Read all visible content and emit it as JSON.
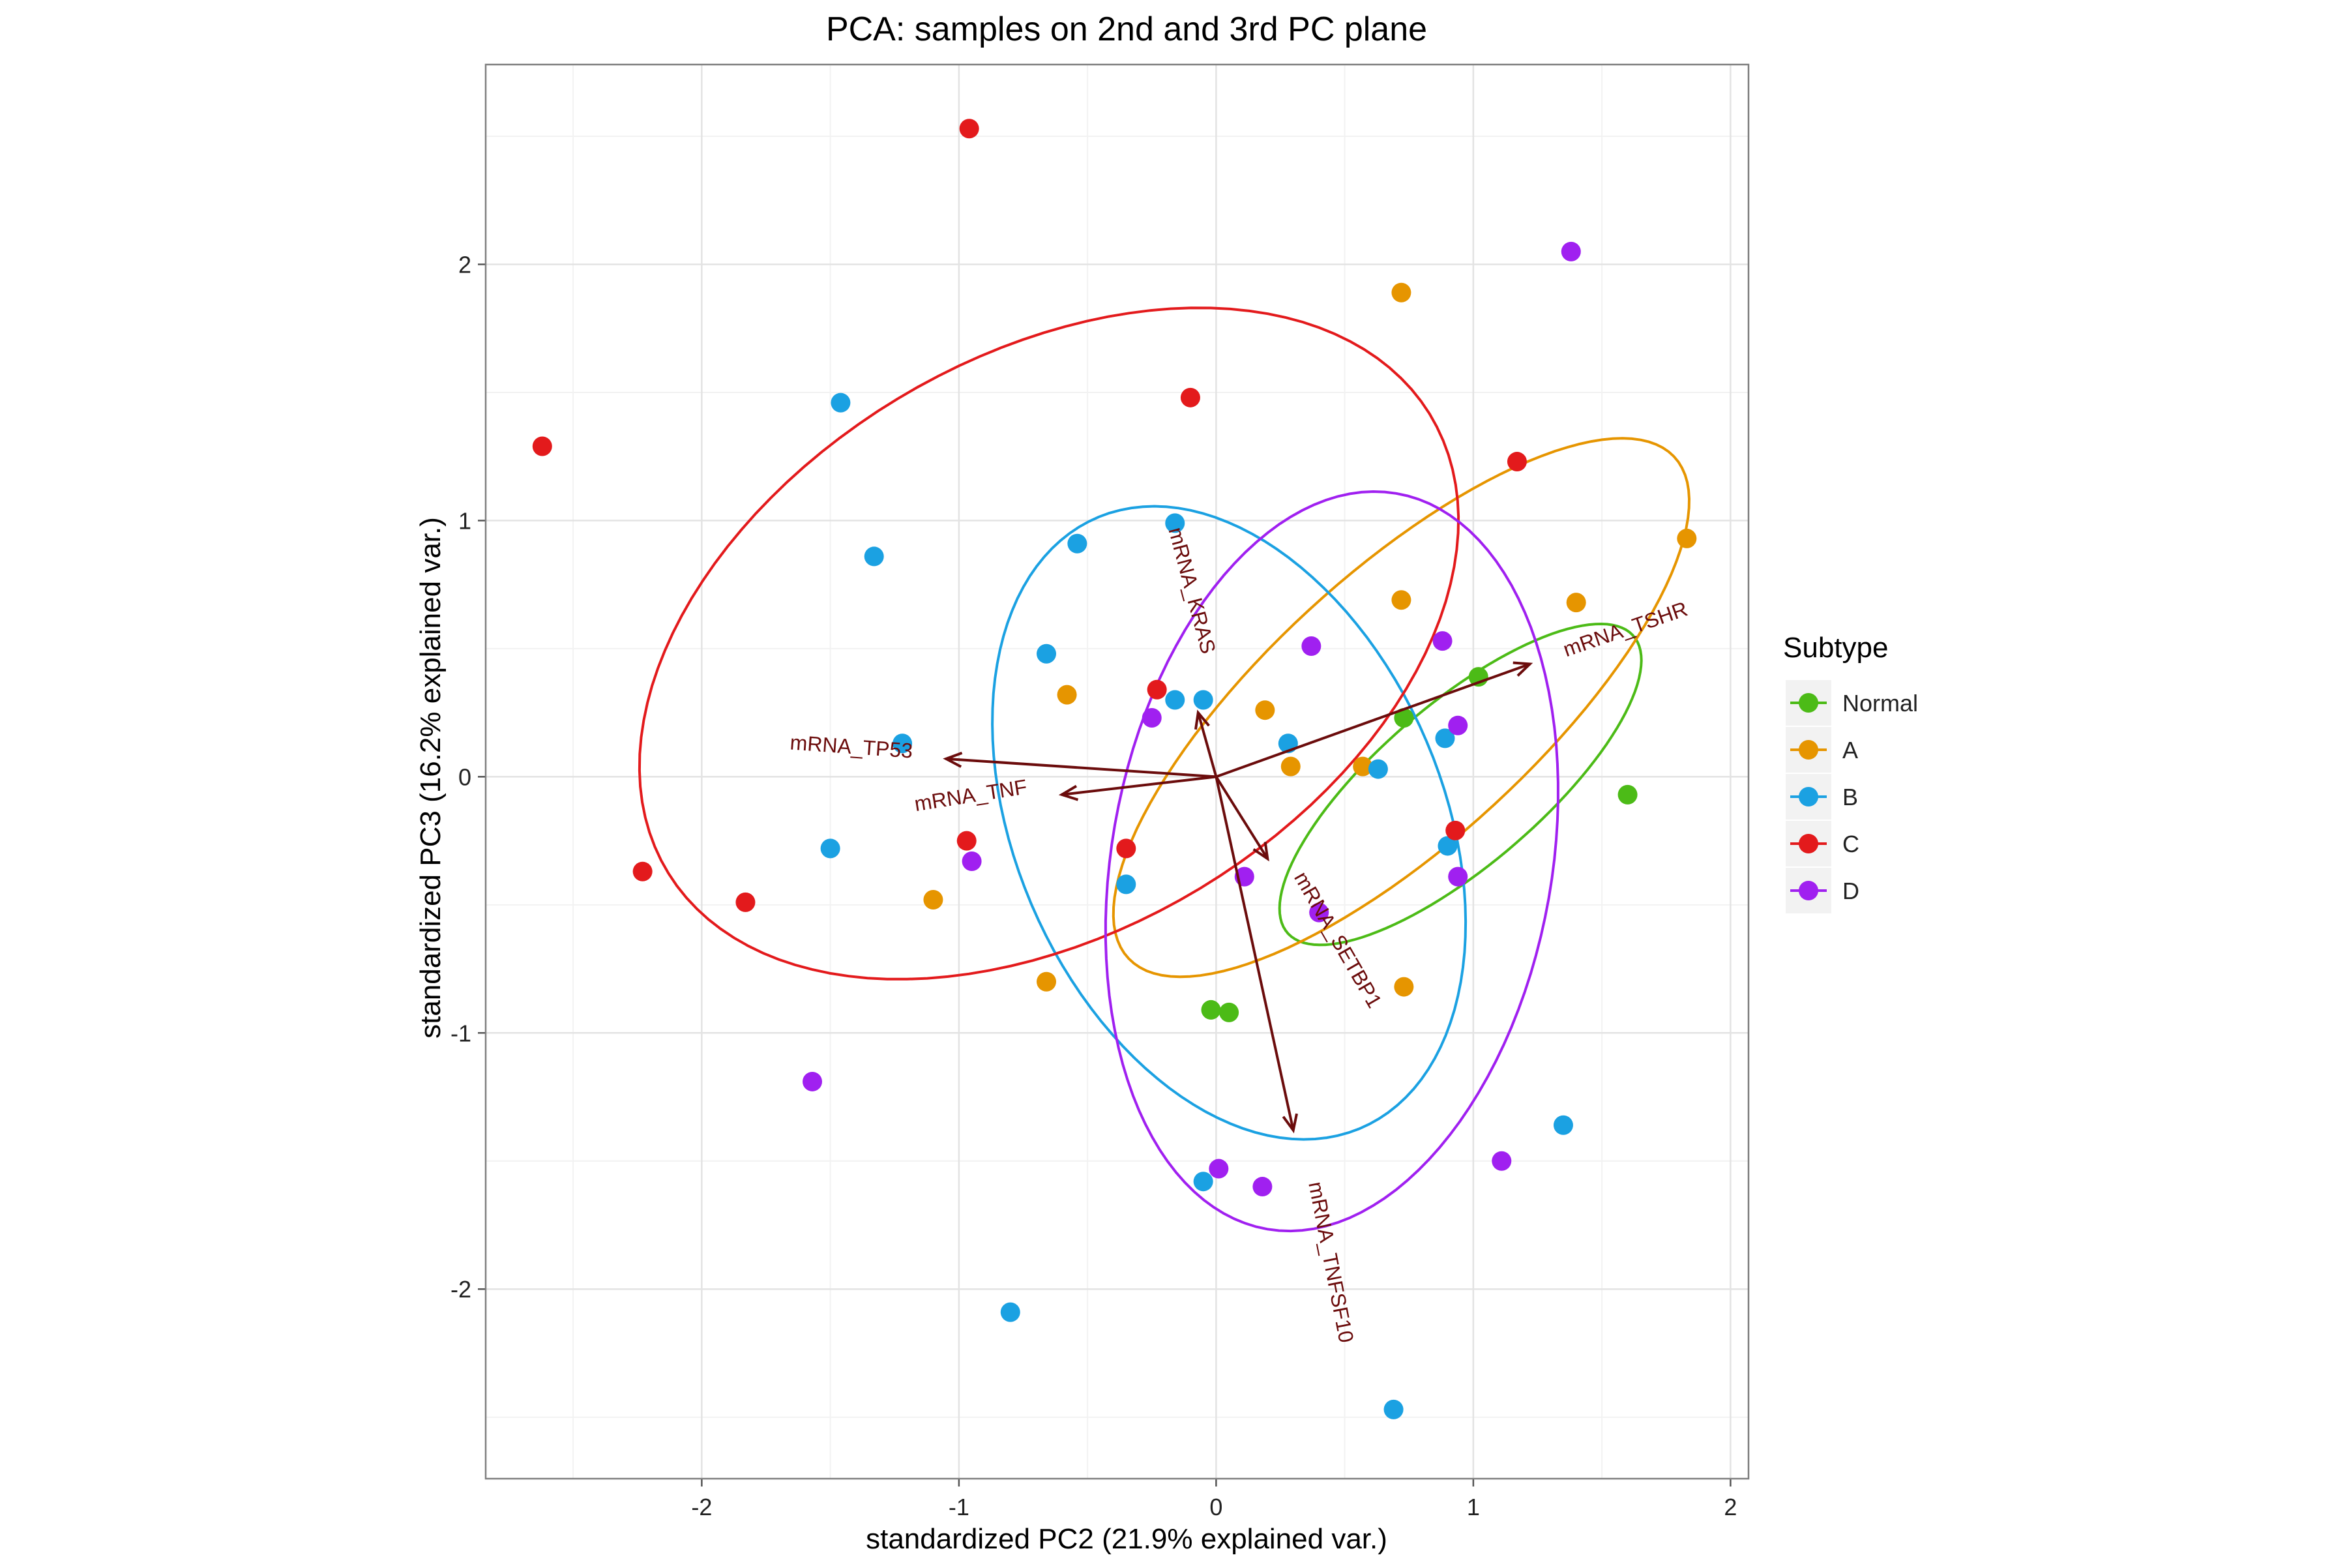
{
  "chart_data": {
    "type": "scatter",
    "title": "PCA: samples on 2nd and 3rd PC plane",
    "xlabel": "standardized PC2 (21.9% explained var.)",
    "ylabel": "standardized PC3 (16.2% explained var.)",
    "xlim": [
      -2.84,
      2.07
    ],
    "ylim": [
      -2.74,
      2.78
    ],
    "xticks": [
      -2,
      -1,
      0,
      1,
      2
    ],
    "yticks": [
      -2,
      -1,
      0,
      1,
      2
    ],
    "grid": true,
    "legend": {
      "title": "Subtype",
      "position": "right"
    },
    "series": [
      {
        "name": "Normal",
        "color": "#4cbb17",
        "points": [
          [
            1.02,
            0.39
          ],
          [
            0.73,
            0.23
          ],
          [
            1.6,
            -0.07
          ],
          [
            -0.02,
            -0.91
          ],
          [
            0.05,
            -0.92
          ]
        ],
        "ellipse": [
          [
            1.18,
            -0.07,
            1.24,
            -0.92
          ],
          [
            0.71,
            0.19,
            0.23,
            0.94
          ]
        ]
      },
      {
        "name": "A",
        "color": "#e69500",
        "points": [
          [
            0.72,
            1.89
          ],
          [
            1.83,
            0.93
          ],
          [
            0.72,
            0.69
          ],
          [
            1.4,
            0.68
          ],
          [
            -0.58,
            0.32
          ],
          [
            0.19,
            0.26
          ],
          [
            0.29,
            0.04
          ],
          [
            0.57,
            0.04
          ],
          [
            -1.1,
            -0.48
          ],
          [
            -0.66,
            -0.8
          ],
          [
            0.73,
            -0.82
          ]
        ],
        "ellipse": [
          [
            1.7,
            0.71,
            1.27,
            -1.05
          ],
          [
            0.61,
            0.33,
            0.2,
            1.53
          ]
        ]
      },
      {
        "name": "B",
        "color": "#1ba1e2",
        "points": [
          [
            -1.46,
            1.46
          ],
          [
            -0.16,
            0.99
          ],
          [
            -0.54,
            0.91
          ],
          [
            -1.33,
            0.86
          ],
          [
            -0.66,
            0.48
          ],
          [
            -0.16,
            0.3
          ],
          [
            -0.05,
            0.3
          ],
          [
            -1.22,
            0.13
          ],
          [
            0.28,
            0.13
          ],
          [
            0.63,
            0.03
          ],
          [
            0.89,
            0.15
          ],
          [
            -1.5,
            -0.28
          ],
          [
            0.9,
            -0.27
          ],
          [
            -0.35,
            -0.42
          ],
          [
            1.35,
            -1.36
          ],
          [
            -0.05,
            -1.58
          ],
          [
            -0.8,
            -2.09
          ],
          [
            0.69,
            -2.47
          ]
        ],
        "ellipse": [
          [
            1.0,
            1.4,
            1.48,
            -1.82
          ],
          [
            0.65,
            0.75,
            1.26,
            0.8
          ]
        ]
      },
      {
        "name": "C",
        "color": "#e31a1c",
        "points": [
          [
            -0.96,
            2.53
          ],
          [
            -0.1,
            1.48
          ],
          [
            -2.62,
            1.29
          ],
          [
            1.17,
            1.23
          ],
          [
            -0.23,
            0.34
          ],
          [
            0.93,
            -0.21
          ],
          [
            -0.35,
            -0.28
          ],
          [
            -0.97,
            -0.25
          ],
          [
            -2.23,
            -0.37
          ],
          [
            -1.83,
            -0.49
          ]
        ],
        "ellipse": [
          [
            -0.6,
            -0.36,
            2.1,
            0.77
          ],
          [
            0.29,
            -0.98,
            1.78,
            1.31
          ]
        ]
      },
      {
        "name": "D",
        "color": "#a020f0",
        "points": [
          [
            1.38,
            2.05
          ],
          [
            0.37,
            0.51
          ],
          [
            0.88,
            0.53
          ],
          [
            -0.25,
            0.23
          ],
          [
            0.94,
            0.2
          ],
          [
            -0.95,
            -0.33
          ],
          [
            0.11,
            -0.39
          ],
          [
            0.94,
            -0.39
          ],
          [
            0.4,
            -0.53
          ],
          [
            -1.57,
            -1.19
          ],
          [
            1.11,
            -1.5
          ],
          [
            0.01,
            -1.53
          ],
          [
            0.18,
            -1.6
          ]
        ],
        "ellipse": [
          [
            1.36,
            1.15,
            0.77,
            -0.53
          ],
          [
            0.88,
            0.67,
            0.77,
            1.81
          ]
        ]
      }
    ],
    "loadings": [
      {
        "label": "mRNA_TSHR",
        "end": [
          1.22,
          0.44
        ]
      },
      {
        "label": "mRNA_TP53",
        "end": [
          -1.05,
          0.07
        ]
      },
      {
        "label": "mRNA_TNF",
        "end": [
          -0.6,
          -0.07
        ]
      },
      {
        "label": "mRNA_KRAS",
        "end": [
          -0.07,
          0.25
        ]
      },
      {
        "label": "mRNA_SETBP1",
        "end": [
          0.2,
          -0.32
        ]
      },
      {
        "label": "mRNA_TNFSF10",
        "end": [
          0.3,
          -1.38
        ]
      }
    ]
  }
}
